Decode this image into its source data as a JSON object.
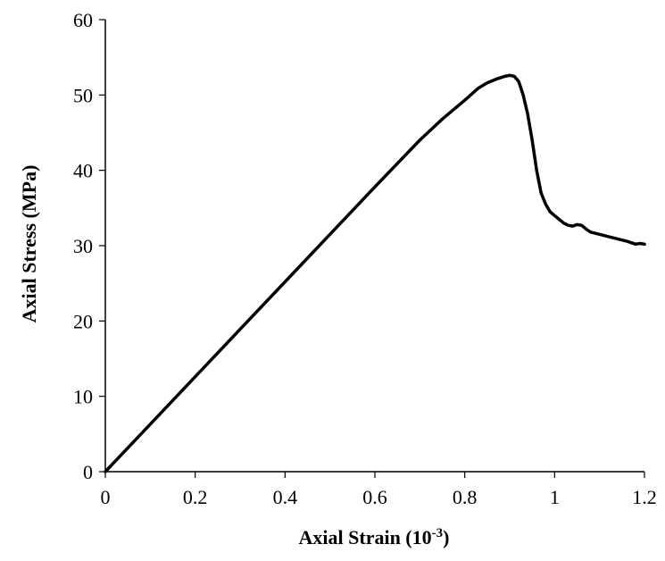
{
  "chart_data": {
    "type": "line",
    "xlabel": "Axial Strain (10",
    "xlabel_superscript": "-3",
    "xlabel_suffix": ")",
    "ylabel": "Axial Stress (MPa)",
    "xlim": [
      0,
      1.2
    ],
    "ylim": [
      0,
      60
    ],
    "xticks": [
      0,
      0.2,
      0.4,
      0.6,
      0.8,
      1,
      1.2
    ],
    "xtick_labels": [
      "0",
      "0.2",
      "0.4",
      "0.6",
      "0.8",
      "1",
      "1.2"
    ],
    "yticks": [
      0,
      10,
      20,
      30,
      40,
      50,
      60
    ],
    "ytick_labels": [
      "0",
      "10",
      "20",
      "30",
      "40",
      "50",
      "60"
    ],
    "grid": false,
    "line_color": "#000000",
    "series": [
      {
        "x": [
          0,
          0.1,
          0.2,
          0.3,
          0.4,
          0.5,
          0.6,
          0.7,
          0.75,
          0.8,
          0.83,
          0.85,
          0.87,
          0.89,
          0.9,
          0.91,
          0.92,
          0.93,
          0.94,
          0.95,
          0.96,
          0.97,
          0.98,
          0.99,
          1.0,
          1.01,
          1.02,
          1.03,
          1.04,
          1.05,
          1.06,
          1.07,
          1.08,
          1.1,
          1.12,
          1.14,
          1.16,
          1.18,
          1.19,
          1.2
        ],
        "y": [
          0,
          6.3,
          12.6,
          18.9,
          25.2,
          31.5,
          37.8,
          44.0,
          46.8,
          49.3,
          50.9,
          51.6,
          52.1,
          52.5,
          52.6,
          52.5,
          51.8,
          50.0,
          47.5,
          44.0,
          40.0,
          37.0,
          35.5,
          34.5,
          34.0,
          33.5,
          33.0,
          32.7,
          32.6,
          32.8,
          32.7,
          32.2,
          31.8,
          31.5,
          31.2,
          30.9,
          30.6,
          30.2,
          30.3,
          30.2
        ]
      }
    ]
  }
}
